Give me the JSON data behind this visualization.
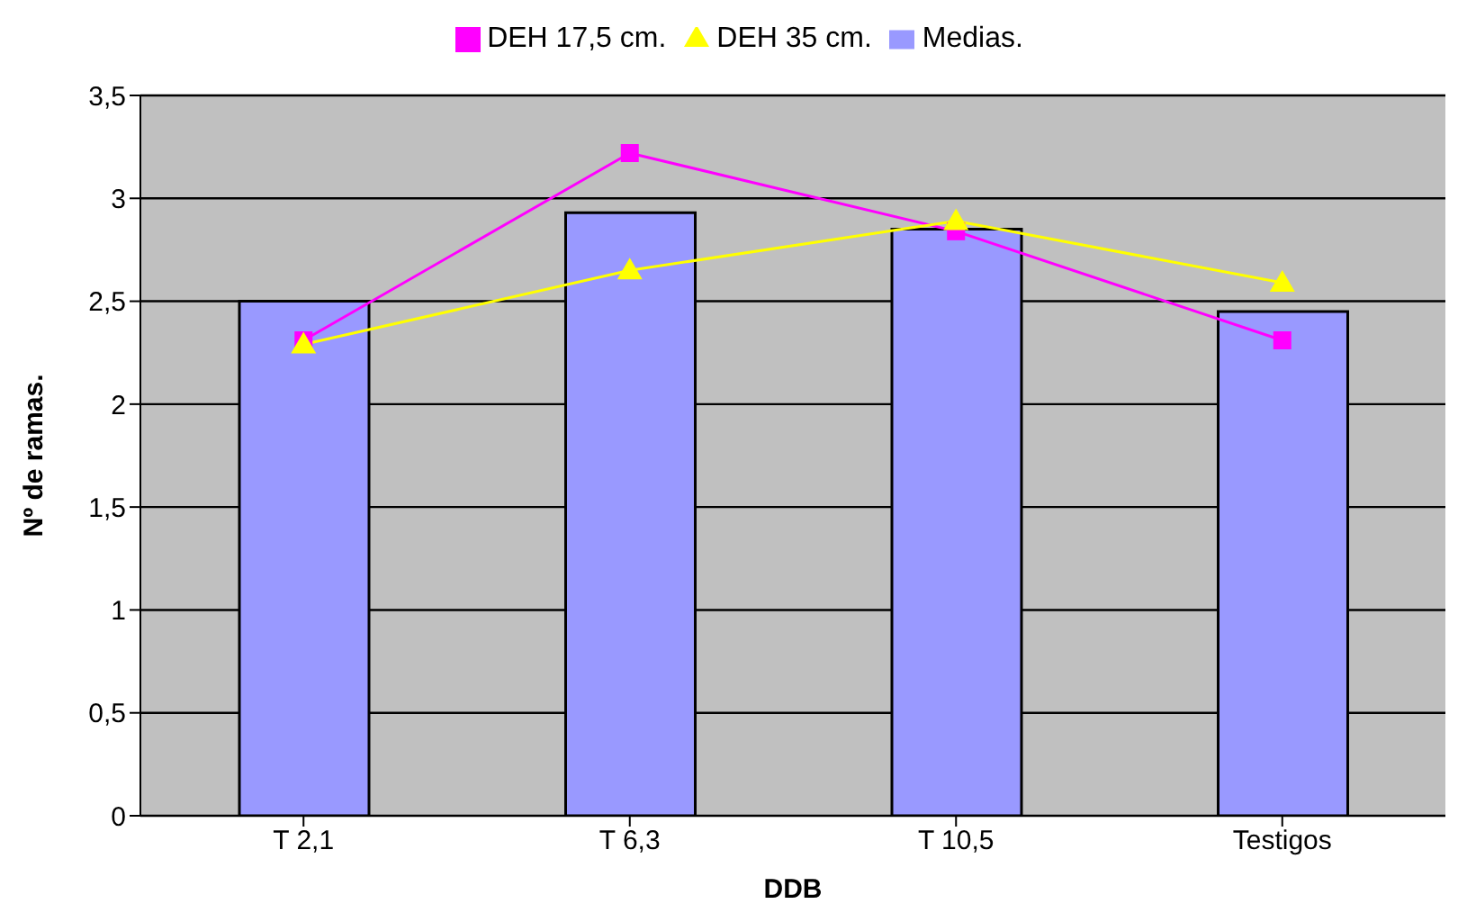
{
  "chart_data": {
    "type": "bar",
    "xlabel": "DDB",
    "ylabel": "Nº de ramas.",
    "categories": [
      "T 2,1",
      "T 6,3",
      "T 10,5",
      "Testigos"
    ],
    "series": [
      {
        "name": "Medias.",
        "color": "#9999ff",
        "values": [
          2.5,
          2.93,
          2.85,
          2.45
        ]
      },
      {
        "name": "DEH 17,5 cm.",
        "type": "line",
        "color": "#ff00ff",
        "marker": "square",
        "values": [
          2.31,
          3.22,
          2.84,
          2.31
        ]
      },
      {
        "name": "DEH 35 cm.",
        "type": "line",
        "color": "#ffff00",
        "marker": "triangle",
        "values": [
          2.29,
          2.65,
          2.89,
          2.59
        ]
      }
    ],
    "ylim": [
      0,
      3.5
    ],
    "yticks": [
      0,
      {
        "value": 0.5,
        "label": "0,5"
      },
      1,
      {
        "value": 1.5,
        "label": "1,5"
      },
      2,
      {
        "value": 2.5,
        "label": "2,5"
      },
      3,
      {
        "value": 3.5,
        "label": "3,5"
      }
    ],
    "grid": "y",
    "legend": "top"
  }
}
